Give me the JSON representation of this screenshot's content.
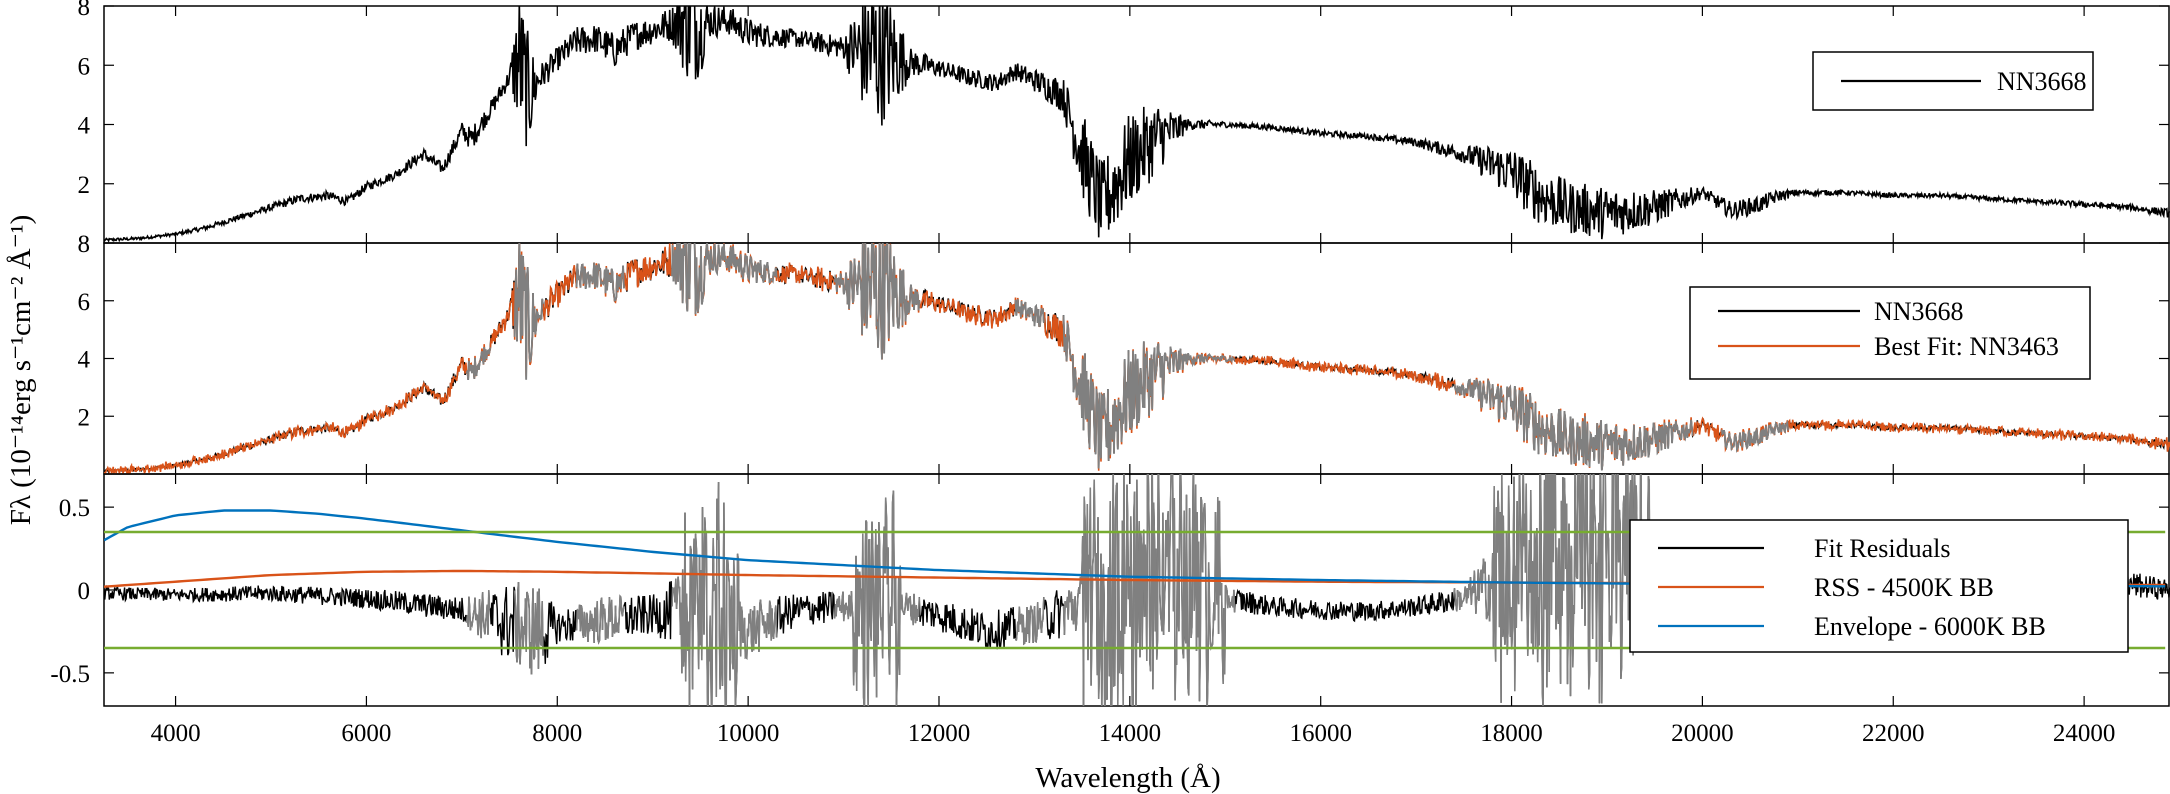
{
  "chart_data": {
    "type": "line",
    "xlabel": "Wavelength (Å)",
    "ylabel": "Fλ (10⁻¹⁴erg s⁻¹cm⁻² Å⁻¹)",
    "xlim": [
      3250,
      24900
    ],
    "x_ticks": [
      "4000",
      "6000",
      "8000",
      "10000",
      "12000",
      "14000",
      "16000",
      "18000",
      "20000",
      "22000",
      "24000"
    ],
    "colors": {
      "spectrum": "#000000",
      "fit": "#d95319",
      "masked": "#808080",
      "rss": "#d95319",
      "envelope": "#0072bd",
      "threshold": "#77ac30"
    },
    "panels": [
      {
        "id": "top",
        "ylim": [
          0,
          8
        ],
        "y_ticks": [
          "2",
          "4",
          "6",
          "8"
        ],
        "legend_position": "top-right",
        "series": [
          {
            "name": "NN3668",
            "key": "spectrum",
            "x": [
              3250,
              3600,
              4000,
              4300,
              4700,
              5000,
              5300,
              5600,
              5800,
              6000,
              6300,
              6600,
              6800,
              7000,
              7100,
              7300,
              7500,
              7600,
              7700,
              7800,
              8000,
              8200,
              8400,
              8600,
              8800,
              9000,
              9200,
              9400,
              9500,
              9600,
              9800,
              10000,
              10200,
              10500,
              11000,
              11300,
              11500,
              11700,
              12000,
              12300,
              12600,
              12800,
              13000,
              13300,
              13500,
              13700,
              14000,
              14300,
              14600,
              15000,
              15500,
              16000,
              16500,
              17000,
              17500,
              18000,
              18300,
              18600,
              19000,
              19500,
              20000,
              20300,
              20600,
              20800,
              21000,
              21500,
              22000,
              22500,
              23000,
              23500,
              24000,
              24500,
              24900
            ],
            "y": [
              0.1,
              0.15,
              0.3,
              0.5,
              0.9,
              1.2,
              1.5,
              1.6,
              1.4,
              1.9,
              2.3,
              3.0,
              2.5,
              3.8,
              3.5,
              4.5,
              5.6,
              6.2,
              5.0,
              5.5,
              6.2,
              6.8,
              6.9,
              6.5,
              7.0,
              7.2,
              7.4,
              7.6,
              7.2,
              7.5,
              7.5,
              7.1,
              7.0,
              6.9,
              6.6,
              6.4,
              6.3,
              6.1,
              5.9,
              5.6,
              5.4,
              5.8,
              5.5,
              5.0,
              3.0,
              1.2,
              2.8,
              3.6,
              4.0,
              4.0,
              3.9,
              3.7,
              3.6,
              3.4,
              3.0,
              2.4,
              1.6,
              1.2,
              1.0,
              1.2,
              1.7,
              1.1,
              1.3,
              1.6,
              1.7,
              1.7,
              1.6,
              1.6,
              1.5,
              1.4,
              1.3,
              1.2,
              1.0
            ],
            "noise": [
              0.05,
              0.05,
              0.05,
              0.08,
              0.1,
              0.12,
              0.15,
              0.15,
              0.15,
              0.15,
              0.15,
              0.2,
              0.2,
              0.3,
              0.4,
              0.3,
              0.3,
              2.5,
              2.0,
              0.5,
              0.4,
              0.5,
              0.5,
              0.6,
              0.5,
              0.5,
              0.6,
              2.5,
              1.5,
              0.6,
              0.5,
              0.5,
              0.4,
              0.3,
              0.4,
              2.8,
              2.0,
              0.5,
              0.3,
              0.3,
              0.3,
              0.3,
              0.4,
              0.6,
              1.5,
              1.5,
              1.6,
              1.2,
              0.2,
              0.1,
              0.1,
              0.1,
              0.1,
              0.15,
              0.3,
              0.9,
              1.0,
              0.9,
              0.9,
              0.6,
              0.2,
              0.3,
              0.3,
              0.2,
              0.1,
              0.08,
              0.08,
              0.08,
              0.08,
              0.08,
              0.1,
              0.1,
              0.15
            ]
          }
        ]
      },
      {
        "id": "middle",
        "ylim": [
          0,
          8
        ],
        "y_ticks": [
          "2",
          "4",
          "6",
          "8"
        ],
        "legend_position": "top-right",
        "mask_ranges": [
          [
            7050,
            7300
          ],
          [
            7550,
            7850
          ],
          [
            8200,
            8700
          ],
          [
            9200,
            10300
          ],
          [
            10900,
            11800
          ],
          [
            12800,
            13100
          ],
          [
            13300,
            15100
          ],
          [
            17400,
            19900
          ],
          [
            20200,
            20900
          ]
        ],
        "series": [
          {
            "name": "NN3668",
            "key": "spectrum"
          },
          {
            "name": "Best Fit: NN3463",
            "key": "fit"
          }
        ]
      },
      {
        "id": "bottom",
        "ylim": [
          -0.7,
          0.7
        ],
        "y_ticks": [
          "-0.5",
          "0",
          "0.5"
        ],
        "legend_position": "right",
        "series": [
          {
            "name": "Fit Residuals",
            "key": "spectrum",
            "x": [
              3250,
              4000,
              5000,
              6000,
              7000,
              7500,
              7800,
              8000,
              8500,
              9000,
              9500,
              10000,
              10500,
              11000,
              11500,
              12000,
              12500,
              13000,
              13500,
              14000,
              14500,
              15000,
              15500,
              16000,
              16500,
              17000,
              17500,
              18000,
              18500,
              19000,
              19500,
              20000,
              20500,
              21000,
              22000,
              22500,
              23000,
              23500,
              24000,
              24500,
              24900
            ],
            "y": [
              -0.02,
              -0.03,
              -0.02,
              -0.05,
              -0.12,
              -0.2,
              -0.25,
              -0.22,
              -0.18,
              -0.15,
              -0.1,
              -0.25,
              -0.12,
              -0.1,
              -0.08,
              -0.15,
              -0.25,
              -0.2,
              -0.08,
              0.05,
              0.2,
              -0.05,
              -0.1,
              -0.12,
              -0.13,
              -0.1,
              -0.05,
              0.1,
              0.25,
              0.3,
              0.2,
              0.02,
              0.02,
              0.02,
              0.01,
              0.0,
              -0.01,
              0.0,
              0.02,
              0.03,
              0.0
            ],
            "noise": [
              0.04,
              0.04,
              0.05,
              0.06,
              0.08,
              0.25,
              0.3,
              0.1,
              0.15,
              0.12,
              0.3,
              0.18,
              0.1,
              0.1,
              0.1,
              0.1,
              0.12,
              0.12,
              0.2,
              0.45,
              0.45,
              0.08,
              0.06,
              0.06,
              0.06,
              0.06,
              0.08,
              0.35,
              0.4,
              0.45,
              0.3,
              0.05,
              0.05,
              0.04,
              0.04,
              0.05,
              0.05,
              0.05,
              0.06,
              0.08,
              0.06
            ]
          },
          {
            "name": "RSS - 4500K BB",
            "key": "rss",
            "x": [
              3250,
              4000,
              5000,
              6000,
              7000,
              8000,
              9000,
              10000,
              12000,
              14000,
              16000,
              18000,
              20000,
              22000,
              24000,
              24900
            ],
            "y": [
              0.02,
              0.05,
              0.09,
              0.11,
              0.115,
              0.11,
              0.1,
              0.09,
              0.075,
              0.06,
              0.05,
              0.045,
              0.04,
              0.035,
              0.03,
              0.03
            ]
          },
          {
            "name": "Envelope - 6000K BB",
            "key": "envelope",
            "x": [
              3250,
              3500,
              4000,
              4500,
              5000,
              5500,
              6000,
              7000,
              8000,
              9000,
              10000,
              11000,
              12000,
              13000,
              14000,
              16000,
              18000,
              20000,
              22000,
              24000,
              24900
            ],
            "y": [
              0.3,
              0.38,
              0.45,
              0.48,
              0.48,
              0.46,
              0.43,
              0.36,
              0.29,
              0.23,
              0.18,
              0.15,
              0.12,
              0.1,
              0.08,
              0.06,
              0.045,
              0.035,
              0.03,
              0.025,
              0.022
            ]
          },
          {
            "name": "",
            "key": "threshold",
            "x": [
              3250,
              24900
            ],
            "y": [
              0.35,
              0.35
            ]
          },
          {
            "name": "",
            "key": "threshold",
            "x": [
              3250,
              24900
            ],
            "y": [
              -0.35,
              -0.35
            ]
          }
        ]
      }
    ]
  }
}
